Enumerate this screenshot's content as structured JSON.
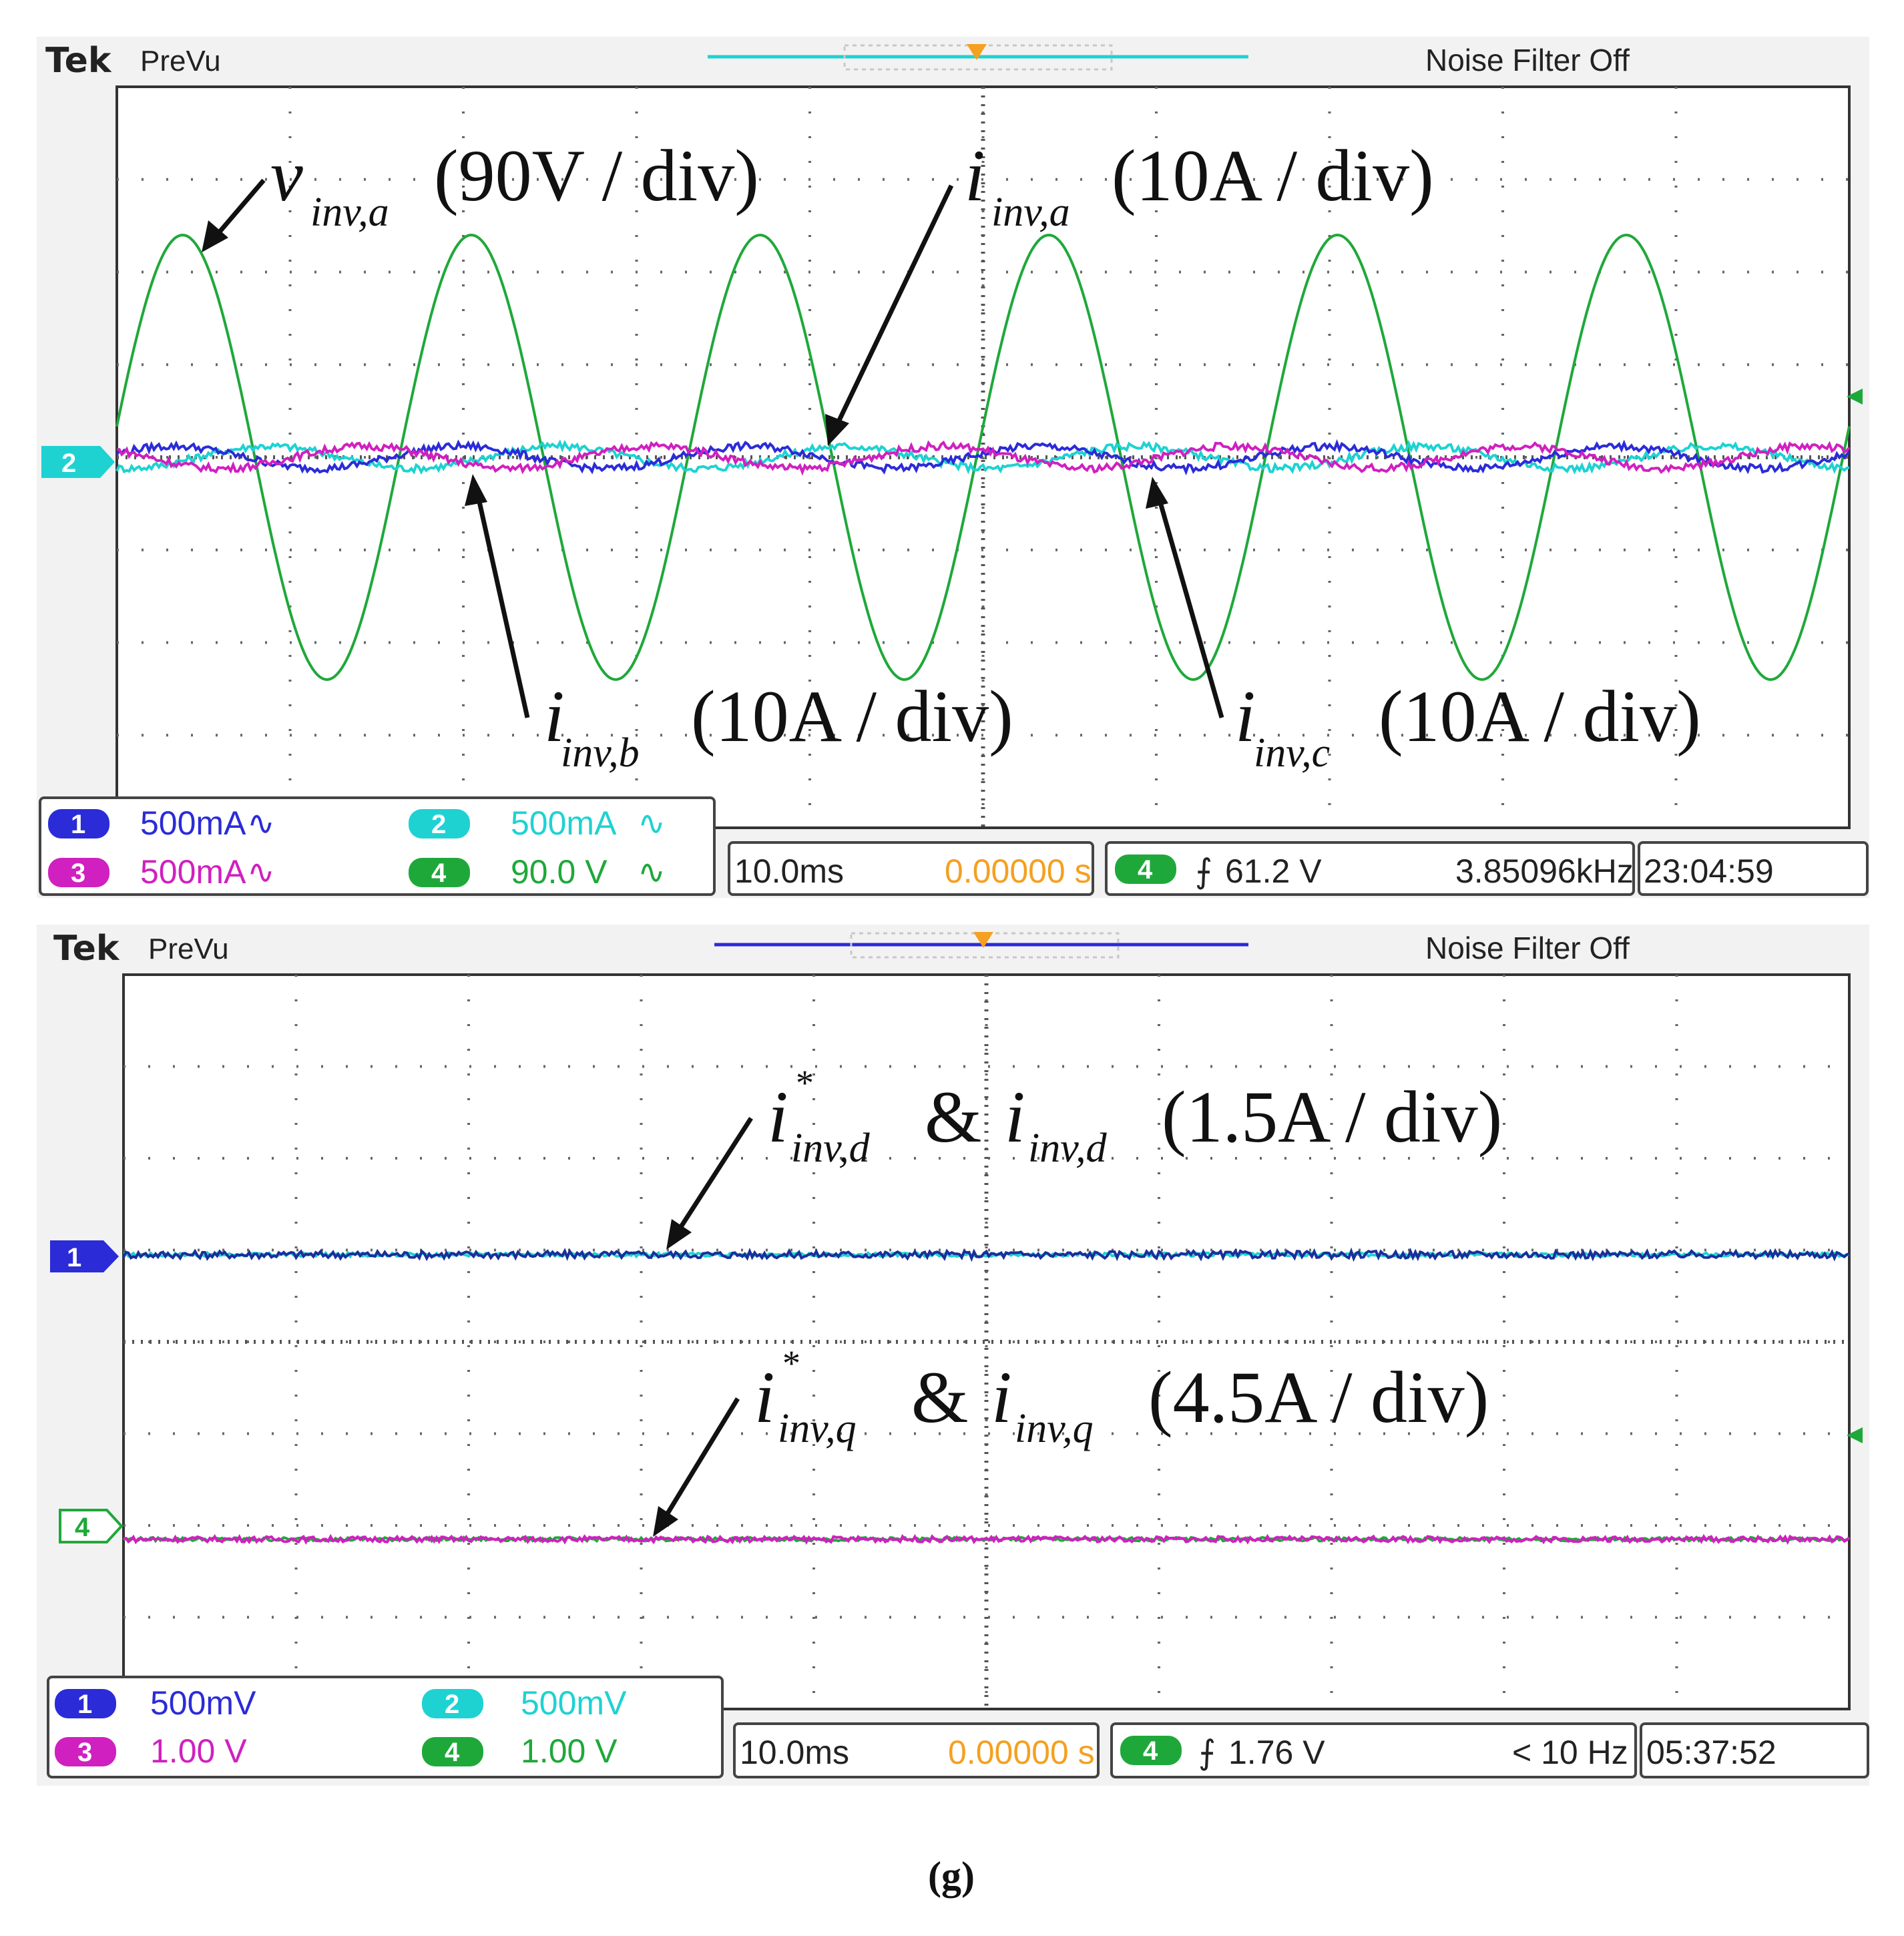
{
  "chart_data": [
    {
      "type": "line",
      "brand": "Tek",
      "mode": "PreVu",
      "status": "Noise Filter Off",
      "annotations": {
        "v_a": {
          "sym": "v",
          "sub": "inv,a",
          "scale": "(90V / div)"
        },
        "i_a": {
          "sym": "i",
          "sub": "inv,a",
          "scale": "(10A / div)"
        },
        "i_b": {
          "sym": "i",
          "sub": "inv,b",
          "scale": "(10A / div)"
        },
        "i_c": {
          "sym": "i",
          "sub": "inv,c",
          "scale": "(10A / div)"
        }
      },
      "channels": [
        {
          "num": "1",
          "scale": "500mA",
          "coupling": "∿",
          "color": "#2b2bd8"
        },
        {
          "num": "2",
          "scale": "500mA",
          "coupling": "∿",
          "color": "#1ed2d2"
        },
        {
          "num": "3",
          "scale": "500mA",
          "coupling": "∿",
          "color": "#d020c0"
        },
        {
          "num": "4",
          "scale": "90.0 V",
          "coupling": "∿",
          "color": "#1fa83a"
        }
      ],
      "timebase": "10.0ms",
      "delay": "0.00000 s",
      "trigger_channel": "4",
      "trigger_slope": "⨍",
      "trigger_level": "61.2 V",
      "frequency": "3.85096kHz",
      "time": "23:04:59",
      "ground_marker": "2",
      "series": [
        {
          "name": "v_inv,a",
          "color": "#1fa83a",
          "kind": "sine",
          "offset_div": 0,
          "amp_div": 2.4,
          "cycles": 6.0,
          "phase_deg": 8
        },
        {
          "name": "i_inv,a",
          "color": "#1ed2d2",
          "kind": "sine",
          "offset_div": 0,
          "amp_div": 0.12,
          "cycles": 6.0,
          "phase_deg": 260
        },
        {
          "name": "i_inv,b",
          "color": "#2b2bd8",
          "kind": "sine",
          "offset_div": 0,
          "amp_div": 0.12,
          "cycles": 6.0,
          "phase_deg": 20
        },
        {
          "name": "i_inv,c",
          "color": "#d020c0",
          "kind": "sine",
          "offset_div": 0,
          "amp_div": 0.12,
          "cycles": 6.0,
          "phase_deg": 140
        }
      ],
      "divisions": {
        "x": 10,
        "y": 8
      }
    },
    {
      "type": "line",
      "brand": "Tek",
      "mode": "PreVu",
      "status": "Noise Filter Off",
      "annotations": {
        "d": {
          "sym": "i",
          "sup": "*",
          "sub": "inv,d",
          "amp": "&",
          "sym2": "i",
          "sub2": "inv,d",
          "scale": "(1.5A / div)"
        },
        "q": {
          "sym": "i",
          "sup": "*",
          "sub": "inv,q",
          "amp": "&",
          "sym2": "i",
          "sub2": "inv,q",
          "scale": "(4.5A / div)"
        }
      },
      "channels": [
        {
          "num": "1",
          "scale": "500mV",
          "coupling": "",
          "color": "#2b2bd8"
        },
        {
          "num": "2",
          "scale": "500mV",
          "coupling": "",
          "color": "#1ed2d2"
        },
        {
          "num": "3",
          "scale": "1.00 V",
          "coupling": "",
          "color": "#d020c0"
        },
        {
          "num": "4",
          "scale": "1.00 V",
          "coupling": "",
          "color": "#1fa83a"
        }
      ],
      "timebase": "10.0ms",
      "delay": "0.00000 s",
      "trigger_channel": "4",
      "trigger_slope": "⨍",
      "trigger_level": "1.76 V",
      "frequency": "< 10 Hz",
      "time": "05:37:52",
      "marker_1": "1",
      "marker_4": "4",
      "series": [
        {
          "name": "i*_inv,d",
          "color": "#1ed2d2",
          "kind": "flat",
          "offset_div": 0.95,
          "noise": 0.02
        },
        {
          "name": "i_inv,d",
          "color": "#1a2f9a",
          "kind": "flat",
          "offset_div": 0.95,
          "noise": 0.04
        },
        {
          "name": "i*_inv,q",
          "color": "#1fa83a",
          "kind": "flat",
          "offset_div": -2.15,
          "noise": 0.02
        },
        {
          "name": "i_inv,q",
          "color": "#d020c0",
          "kind": "flat",
          "offset_div": -2.15,
          "noise": 0.03
        }
      ],
      "divisions": {
        "x": 10,
        "y": 8
      }
    }
  ],
  "caption": "(g)"
}
